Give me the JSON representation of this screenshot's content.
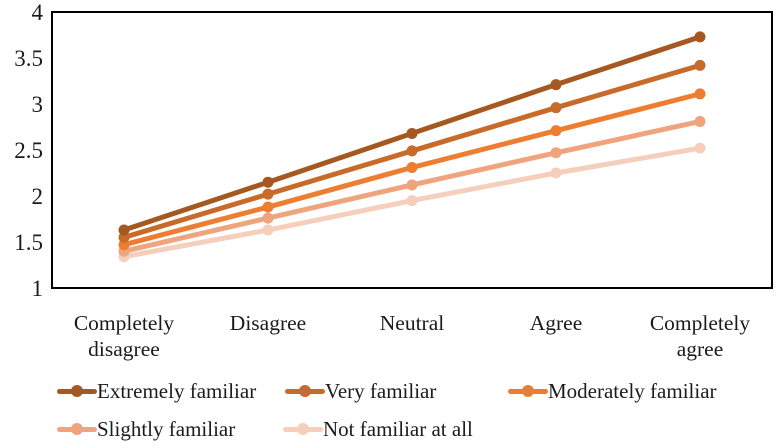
{
  "figure": {
    "background": "#ffffff",
    "axis_color": "#000000",
    "text_color": "#1b1b1b"
  },
  "chart_data": {
    "type": "line",
    "title": "",
    "xlabel": "",
    "ylabel": "",
    "ylim": [
      1,
      4
    ],
    "yticks": [
      4,
      3.5,
      3,
      2.5,
      2,
      1.5,
      1
    ],
    "grid": false,
    "marker": "circle",
    "legend_position": "bottom",
    "categories": [
      "Completely disagree",
      "Disagree",
      "Neutral",
      "Agree",
      "Completely agree"
    ],
    "categories_wrapped": [
      [
        "Completely",
        "disagree"
      ],
      [
        "Disagree"
      ],
      [
        "Neutral"
      ],
      [
        "Agree"
      ],
      [
        "Completely",
        "agree"
      ]
    ],
    "series": [
      {
        "name": "Extremely familiar",
        "color": "#A5581F",
        "values": [
          1.63,
          2.15,
          2.68,
          3.21,
          3.73
        ]
      },
      {
        "name": "Very familiar",
        "color": "#C76A2A",
        "values": [
          1.55,
          2.02,
          2.49,
          2.96,
          3.42
        ]
      },
      {
        "name": "Moderately familiar",
        "color": "#ED7D31",
        "values": [
          1.47,
          1.88,
          2.31,
          2.71,
          3.11
        ]
      },
      {
        "name": "Slightly familiar",
        "color": "#F0A47D",
        "values": [
          1.4,
          1.76,
          2.12,
          2.47,
          2.81
        ]
      },
      {
        "name": "Not familiar at all",
        "color": "#F5CFBC",
        "values": [
          1.34,
          1.63,
          1.95,
          2.25,
          2.52
        ]
      }
    ]
  },
  "legend": {
    "rows": [
      [
        "Extremely familiar",
        "Very familiar",
        "Moderately familiar"
      ],
      [
        "Slightly familiar",
        "Not familiar at all"
      ]
    ]
  }
}
